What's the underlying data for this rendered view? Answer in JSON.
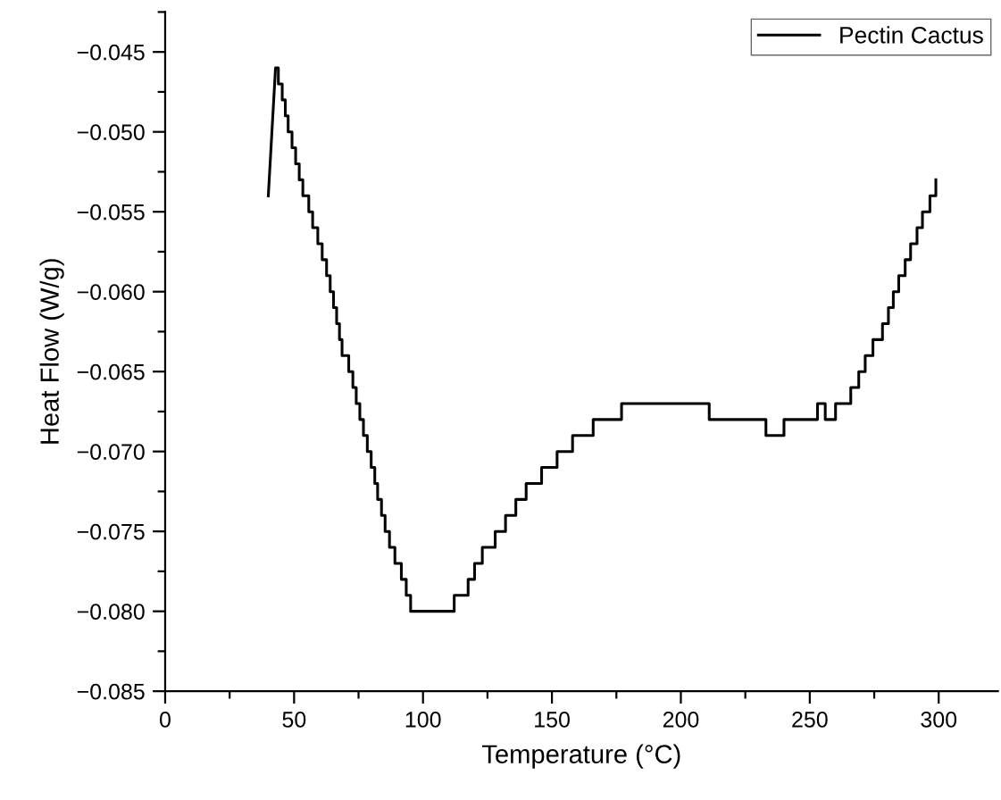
{
  "chart_data": {
    "type": "line",
    "xlabel": "Temperature (°C)",
    "ylabel": "Heat Flow (W/g)",
    "xlim": [
      0,
      323
    ],
    "xticks": [
      0,
      50,
      100,
      150,
      200,
      250,
      300
    ],
    "ylim": [
      -0.085,
      -0.0425
    ],
    "yticks": [
      {
        "value": -0.085,
        "label": "−0.085"
      },
      {
        "value": -0.08,
        "label": "−0.080"
      },
      {
        "value": -0.075,
        "label": "−0.075"
      },
      {
        "value": -0.07,
        "label": "−0.070"
      },
      {
        "value": -0.065,
        "label": "−0.065"
      },
      {
        "value": -0.06,
        "label": "−0.060"
      },
      {
        "value": -0.055,
        "label": "−0.055"
      },
      {
        "value": -0.05,
        "label": "−0.050"
      },
      {
        "value": -0.045,
        "label": "−0.045"
      }
    ],
    "grid": false,
    "legend": "top right",
    "series": [
      {
        "name": "Pectin Cactus",
        "color": "#000000",
        "x": [
          40,
          42.8,
          43.9,
          43.9,
          45.4,
          45.4,
          46.6,
          46.6,
          47.7,
          47.7,
          49.2,
          49.2,
          50.6,
          50.6,
          52.0,
          52.0,
          53.4,
          53.4,
          55.7,
          55.7,
          57.2,
          57.2,
          59.2,
          59.2,
          60.9,
          60.9,
          62.6,
          62.6,
          64.0,
          64.0,
          65.3,
          65.3,
          66.5,
          66.5,
          67.6,
          67.6,
          68.6,
          68.6,
          71.2,
          71.2,
          72.8,
          72.8,
          74.1,
          74.1,
          75.5,
          75.5,
          76.9,
          76.9,
          78.4,
          78.4,
          79.9,
          79.9,
          81.3,
          81.3,
          82.4,
          82.4,
          83.9,
          83.9,
          85.3,
          85.3,
          87.0,
          87.0,
          89.1,
          89.1,
          91.6,
          91.6,
          93.5,
          93.5,
          95.2,
          95.2,
          112.1,
          112.1,
          117.5,
          117.5,
          120,
          120,
          123,
          123,
          128,
          128,
          132,
          132,
          136,
          136,
          140,
          140,
          146,
          146,
          152,
          152,
          158,
          158,
          166,
          166,
          177,
          177,
          211,
          211,
          233,
          233,
          240,
          240,
          253,
          253,
          256,
          256,
          260,
          260,
          265.9,
          265.9,
          269.0,
          269.0,
          271.5,
          271.5,
          274.5,
          274.5,
          278.2,
          278.2,
          280.5,
          280.5,
          282.4,
          282.4,
          284.5,
          284.5,
          287.0,
          287.0,
          289.1,
          289.1,
          291.6,
          291.6,
          293.7,
          293.7,
          296.6,
          296.6,
          298.9,
          298.9
        ],
        "values": [
          -0.054,
          -0.046,
          -0.046,
          -0.047,
          -0.047,
          -0.048,
          -0.048,
          -0.049,
          -0.049,
          -0.05,
          -0.05,
          -0.051,
          -0.051,
          -0.052,
          -0.052,
          -0.053,
          -0.053,
          -0.054,
          -0.054,
          -0.055,
          -0.055,
          -0.056,
          -0.056,
          -0.057,
          -0.057,
          -0.058,
          -0.058,
          -0.059,
          -0.059,
          -0.06,
          -0.06,
          -0.061,
          -0.061,
          -0.062,
          -0.062,
          -0.063,
          -0.063,
          -0.064,
          -0.064,
          -0.065,
          -0.065,
          -0.066,
          -0.066,
          -0.067,
          -0.067,
          -0.068,
          -0.068,
          -0.069,
          -0.069,
          -0.07,
          -0.07,
          -0.071,
          -0.071,
          -0.072,
          -0.072,
          -0.073,
          -0.073,
          -0.074,
          -0.074,
          -0.075,
          -0.075,
          -0.076,
          -0.076,
          -0.077,
          -0.077,
          -0.078,
          -0.078,
          -0.079,
          -0.079,
          -0.08,
          -0.08,
          -0.079,
          -0.079,
          -0.078,
          -0.078,
          -0.077,
          -0.077,
          -0.076,
          -0.076,
          -0.075,
          -0.075,
          -0.074,
          -0.074,
          -0.073,
          -0.073,
          -0.072,
          -0.072,
          -0.071,
          -0.071,
          -0.07,
          -0.07,
          -0.069,
          -0.069,
          -0.068,
          -0.068,
          -0.067,
          -0.067,
          -0.068,
          -0.068,
          -0.069,
          -0.069,
          -0.068,
          -0.068,
          -0.067,
          -0.067,
          -0.068,
          -0.068,
          -0.067,
          -0.067,
          -0.066,
          -0.066,
          -0.065,
          -0.065,
          -0.064,
          -0.064,
          -0.063,
          -0.063,
          -0.062,
          -0.062,
          -0.061,
          -0.061,
          -0.06,
          -0.06,
          -0.059,
          -0.059,
          -0.058,
          -0.058,
          -0.057,
          -0.057,
          -0.056,
          -0.056,
          -0.055,
          -0.055,
          -0.054,
          -0.054,
          -0.053
        ]
      }
    ]
  }
}
